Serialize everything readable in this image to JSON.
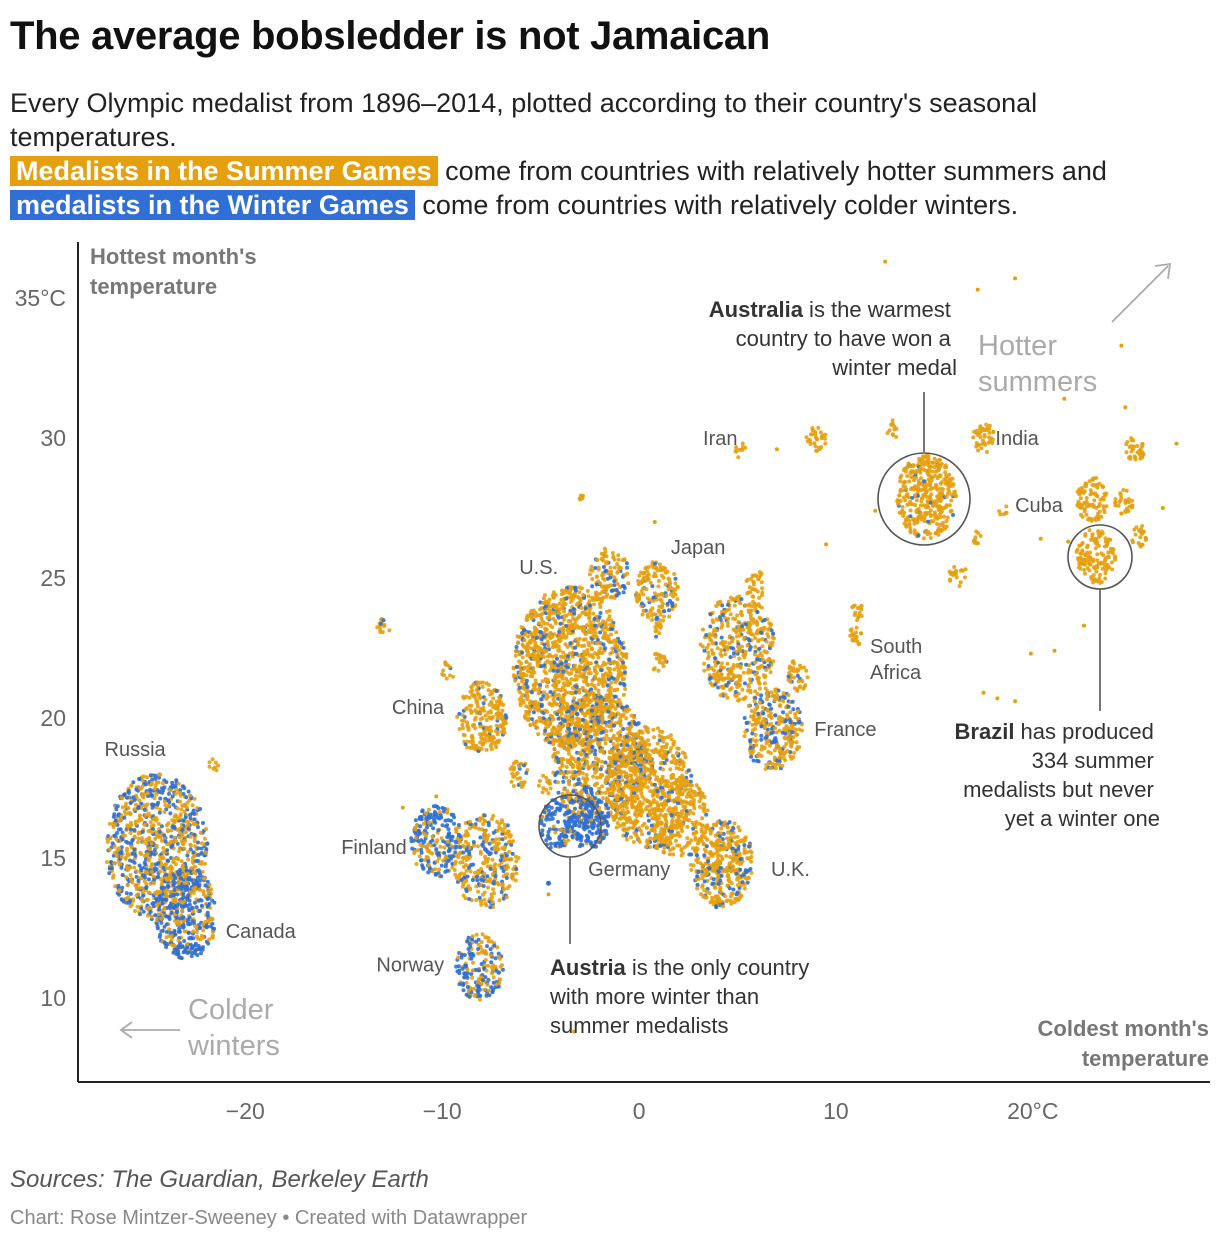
{
  "title": "The average bobsledder is not Jamaican",
  "description": {
    "line1": "Every Olympic medalist from 1896–2014, plotted according to their country's seasonal temperatures.",
    "summer_label": "Medalists in the Summer Games",
    "mid_text": "come from countries with relatively hotter summers and",
    "winter_label": "medalists in the Winter Games",
    "end_text": "come from countries with relatively colder winters."
  },
  "colors": {
    "summer": "#e5a00f",
    "winter": "#2f6fd6",
    "axis": "#222222",
    "annotation": "#555555"
  },
  "chart_data": {
    "type": "scatter",
    "xlabel": "Coldest month's temperature",
    "ylabel": "Hottest month's temperature",
    "xlim": [
      -28.5,
      29
    ],
    "ylim": [
      7,
      37
    ],
    "x_ticks": [
      {
        "value": -20,
        "label": "−20"
      },
      {
        "value": -10,
        "label": "−10"
      },
      {
        "value": 0,
        "label": "0"
      },
      {
        "value": 10,
        "label": "10"
      },
      {
        "value": 20,
        "label": "20°C"
      }
    ],
    "y_ticks": [
      {
        "value": 10,
        "label": "10"
      },
      {
        "value": 15,
        "label": "15"
      },
      {
        "value": 20,
        "label": "20"
      },
      {
        "value": 25,
        "label": "25"
      },
      {
        "value": 30,
        "label": "30"
      },
      {
        "value": 35,
        "label": "35°C"
      }
    ],
    "series": [
      {
        "name": "Summer Games medalists",
        "color": "#e5a00f"
      },
      {
        "name": "Winter Games medalists",
        "color": "#2f6fd6"
      }
    ],
    "clusters": [
      {
        "x": -24.5,
        "y": 15.4,
        "r": 2.6,
        "n": 900,
        "winter_share": 0.45
      },
      {
        "x": -23.0,
        "y": 13.0,
        "r": 1.6,
        "n": 380,
        "winter_share": 0.7
      },
      {
        "x": -21.6,
        "y": 18.3,
        "r": 0.25,
        "n": 8,
        "winter_share": 0
      },
      {
        "x": -13.0,
        "y": 23.2,
        "r": 0.35,
        "n": 14,
        "winter_share": 0.2
      },
      {
        "x": -9.7,
        "y": 21.7,
        "r": 0.35,
        "n": 12,
        "winter_share": 0.1
      },
      {
        "x": -8.0,
        "y": 20.0,
        "r": 1.3,
        "n": 230,
        "winter_share": 0.12
      },
      {
        "x": -10.3,
        "y": 15.6,
        "r": 1.3,
        "n": 220,
        "winter_share": 0.7
      },
      {
        "x": -7.8,
        "y": 14.9,
        "r": 1.7,
        "n": 320,
        "winter_share": 0.35
      },
      {
        "x": -8.1,
        "y": 11.1,
        "r": 1.2,
        "n": 190,
        "winter_share": 0.55
      },
      {
        "x": -3.5,
        "y": 21.8,
        "r": 2.9,
        "n": 1300,
        "winter_share": 0.2
      },
      {
        "x": -2.0,
        "y": 18.5,
        "r": 2.4,
        "n": 800,
        "winter_share": 0.25
      },
      {
        "x": 0.5,
        "y": 17.5,
        "r": 2.2,
        "n": 600,
        "winter_share": 0.12
      },
      {
        "x": 2.0,
        "y": 16.5,
        "r": 1.5,
        "n": 220,
        "winter_share": 0.08
      },
      {
        "x": -2.6,
        "y": 16.4,
        "r": 1.1,
        "n": 180,
        "winter_share": 0.75
      },
      {
        "x": -4.2,
        "y": 16.2,
        "r": 0.9,
        "n": 110,
        "winter_share": 0.85
      },
      {
        "x": -6.1,
        "y": 18.0,
        "r": 0.5,
        "n": 30,
        "winter_share": 0.2
      },
      {
        "x": -4.8,
        "y": 17.6,
        "r": 0.35,
        "n": 14,
        "winter_share": 0.1
      },
      {
        "x": -1.5,
        "y": 25.1,
        "r": 1.0,
        "n": 120,
        "winter_share": 0.25
      },
      {
        "x": 0.9,
        "y": 24.5,
        "r": 1.1,
        "n": 150,
        "winter_share": 0.2
      },
      {
        "x": 1.0,
        "y": 22.0,
        "r": 0.4,
        "n": 20,
        "winter_share": 0.1
      },
      {
        "x": 0.8,
        "y": 23.2,
        "r": 0.35,
        "n": 12,
        "winter_share": 0.1
      },
      {
        "x": 5.0,
        "y": 22.5,
        "r": 1.9,
        "n": 420,
        "winter_share": 0.25
      },
      {
        "x": 6.8,
        "y": 19.6,
        "r": 1.5,
        "n": 300,
        "winter_share": 0.3
      },
      {
        "x": 8.0,
        "y": 21.5,
        "r": 0.6,
        "n": 40,
        "winter_share": 0.1
      },
      {
        "x": 4.2,
        "y": 14.8,
        "r": 1.6,
        "n": 400,
        "winter_share": 0.2
      },
      {
        "x": 5.9,
        "y": 24.8,
        "r": 0.55,
        "n": 30,
        "winter_share": 0
      },
      {
        "x": 11.1,
        "y": 23.8,
        "r": 0.35,
        "n": 14,
        "winter_share": 0
      },
      {
        "x": 10.9,
        "y": 22.9,
        "r": 0.4,
        "n": 18,
        "winter_share": 0
      },
      {
        "x": 14.6,
        "y": 27.9,
        "r": 1.5,
        "n": 380,
        "winter_share": 0.04
      },
      {
        "x": 16.2,
        "y": 25.1,
        "r": 0.45,
        "n": 22,
        "winter_share": 0
      },
      {
        "x": 17.1,
        "y": 26.5,
        "r": 0.3,
        "n": 10,
        "winter_share": 0
      },
      {
        "x": 12.9,
        "y": 30.3,
        "r": 0.35,
        "n": 12,
        "winter_share": 0
      },
      {
        "x": 17.5,
        "y": 30.0,
        "r": 0.55,
        "n": 40,
        "winter_share": 0
      },
      {
        "x": 9.0,
        "y": 30.0,
        "r": 0.5,
        "n": 30,
        "winter_share": 0
      },
      {
        "x": 5.1,
        "y": 29.6,
        "r": 0.3,
        "n": 10,
        "winter_share": 0
      },
      {
        "x": 23.0,
        "y": 27.8,
        "r": 0.8,
        "n": 90,
        "winter_share": 0
      },
      {
        "x": 23.2,
        "y": 25.8,
        "r": 1.0,
        "n": 130,
        "winter_share": 0
      },
      {
        "x": 25.2,
        "y": 29.6,
        "r": 0.5,
        "n": 35,
        "winter_share": 0
      },
      {
        "x": 24.6,
        "y": 27.7,
        "r": 0.5,
        "n": 30,
        "winter_share": 0
      },
      {
        "x": 25.4,
        "y": 26.5,
        "r": 0.4,
        "n": 22,
        "winter_share": 0
      },
      {
        "x": 18.5,
        "y": 27.4,
        "r": 0.25,
        "n": 6,
        "winter_share": 0
      },
      {
        "x": -3.0,
        "y": 28.0,
        "r": 0.2,
        "n": 6,
        "winter_share": 0
      }
    ],
    "country_labels": [
      {
        "name": "Russia",
        "x": -25.6,
        "y": 18.9,
        "anchor": "middle"
      },
      {
        "name": "Canada",
        "x": -21.0,
        "y": 12.4,
        "anchor": "start"
      },
      {
        "name": "Finland",
        "x": -11.8,
        "y": 15.4,
        "anchor": "end"
      },
      {
        "name": "Norway",
        "x": -9.9,
        "y": 11.2,
        "anchor": "end"
      },
      {
        "name": "China",
        "x": -9.9,
        "y": 20.4,
        "anchor": "end"
      },
      {
        "name": "U.S.",
        "x": -5.1,
        "y": 25.4,
        "anchor": "middle"
      },
      {
        "name": "Japan",
        "x": 3.0,
        "y": 26.1,
        "anchor": "middle"
      },
      {
        "name": "Germany",
        "x": -0.5,
        "y": 14.6,
        "anchor": "middle"
      },
      {
        "name": "U.K.",
        "x": 6.7,
        "y": 14.6,
        "anchor": "start"
      },
      {
        "name": "France",
        "x": 8.9,
        "y": 19.6,
        "anchor": "start"
      },
      {
        "name": "Iran",
        "x": 5.0,
        "y": 30.0,
        "anchor": "end"
      },
      {
        "name": "India",
        "x": 18.1,
        "y": 30.0,
        "anchor": "start"
      },
      {
        "name": "Cuba",
        "x": 19.1,
        "y": 27.6,
        "anchor": "start"
      }
    ],
    "south_africa": {
      "line1": "South",
      "line2": "Africa"
    },
    "annotations": {
      "australia": {
        "bold": "Australia",
        "rest1": " is the warmest",
        "line2": "country to have won a",
        "line3": "winter medal"
      },
      "brazil": {
        "bold": "Brazil",
        "rest1": " has produced",
        "line2": "334 summer",
        "line3": "medalists but never",
        "line4": "yet a winter one"
      },
      "austria": {
        "bold": "Austria",
        "rest1": " is the only country",
        "line2": "with more winter than",
        "line3": "summer medalists"
      }
    },
    "direction_labels": {
      "hotter": [
        "Hotter",
        "summers"
      ],
      "colder": [
        "Colder",
        "winters"
      ]
    }
  },
  "footer": {
    "source": "Sources: The Guardian, Berkeley Earth",
    "credit": "Chart: Rose Mintzer-Sweeney • Created with Datawrapper"
  }
}
